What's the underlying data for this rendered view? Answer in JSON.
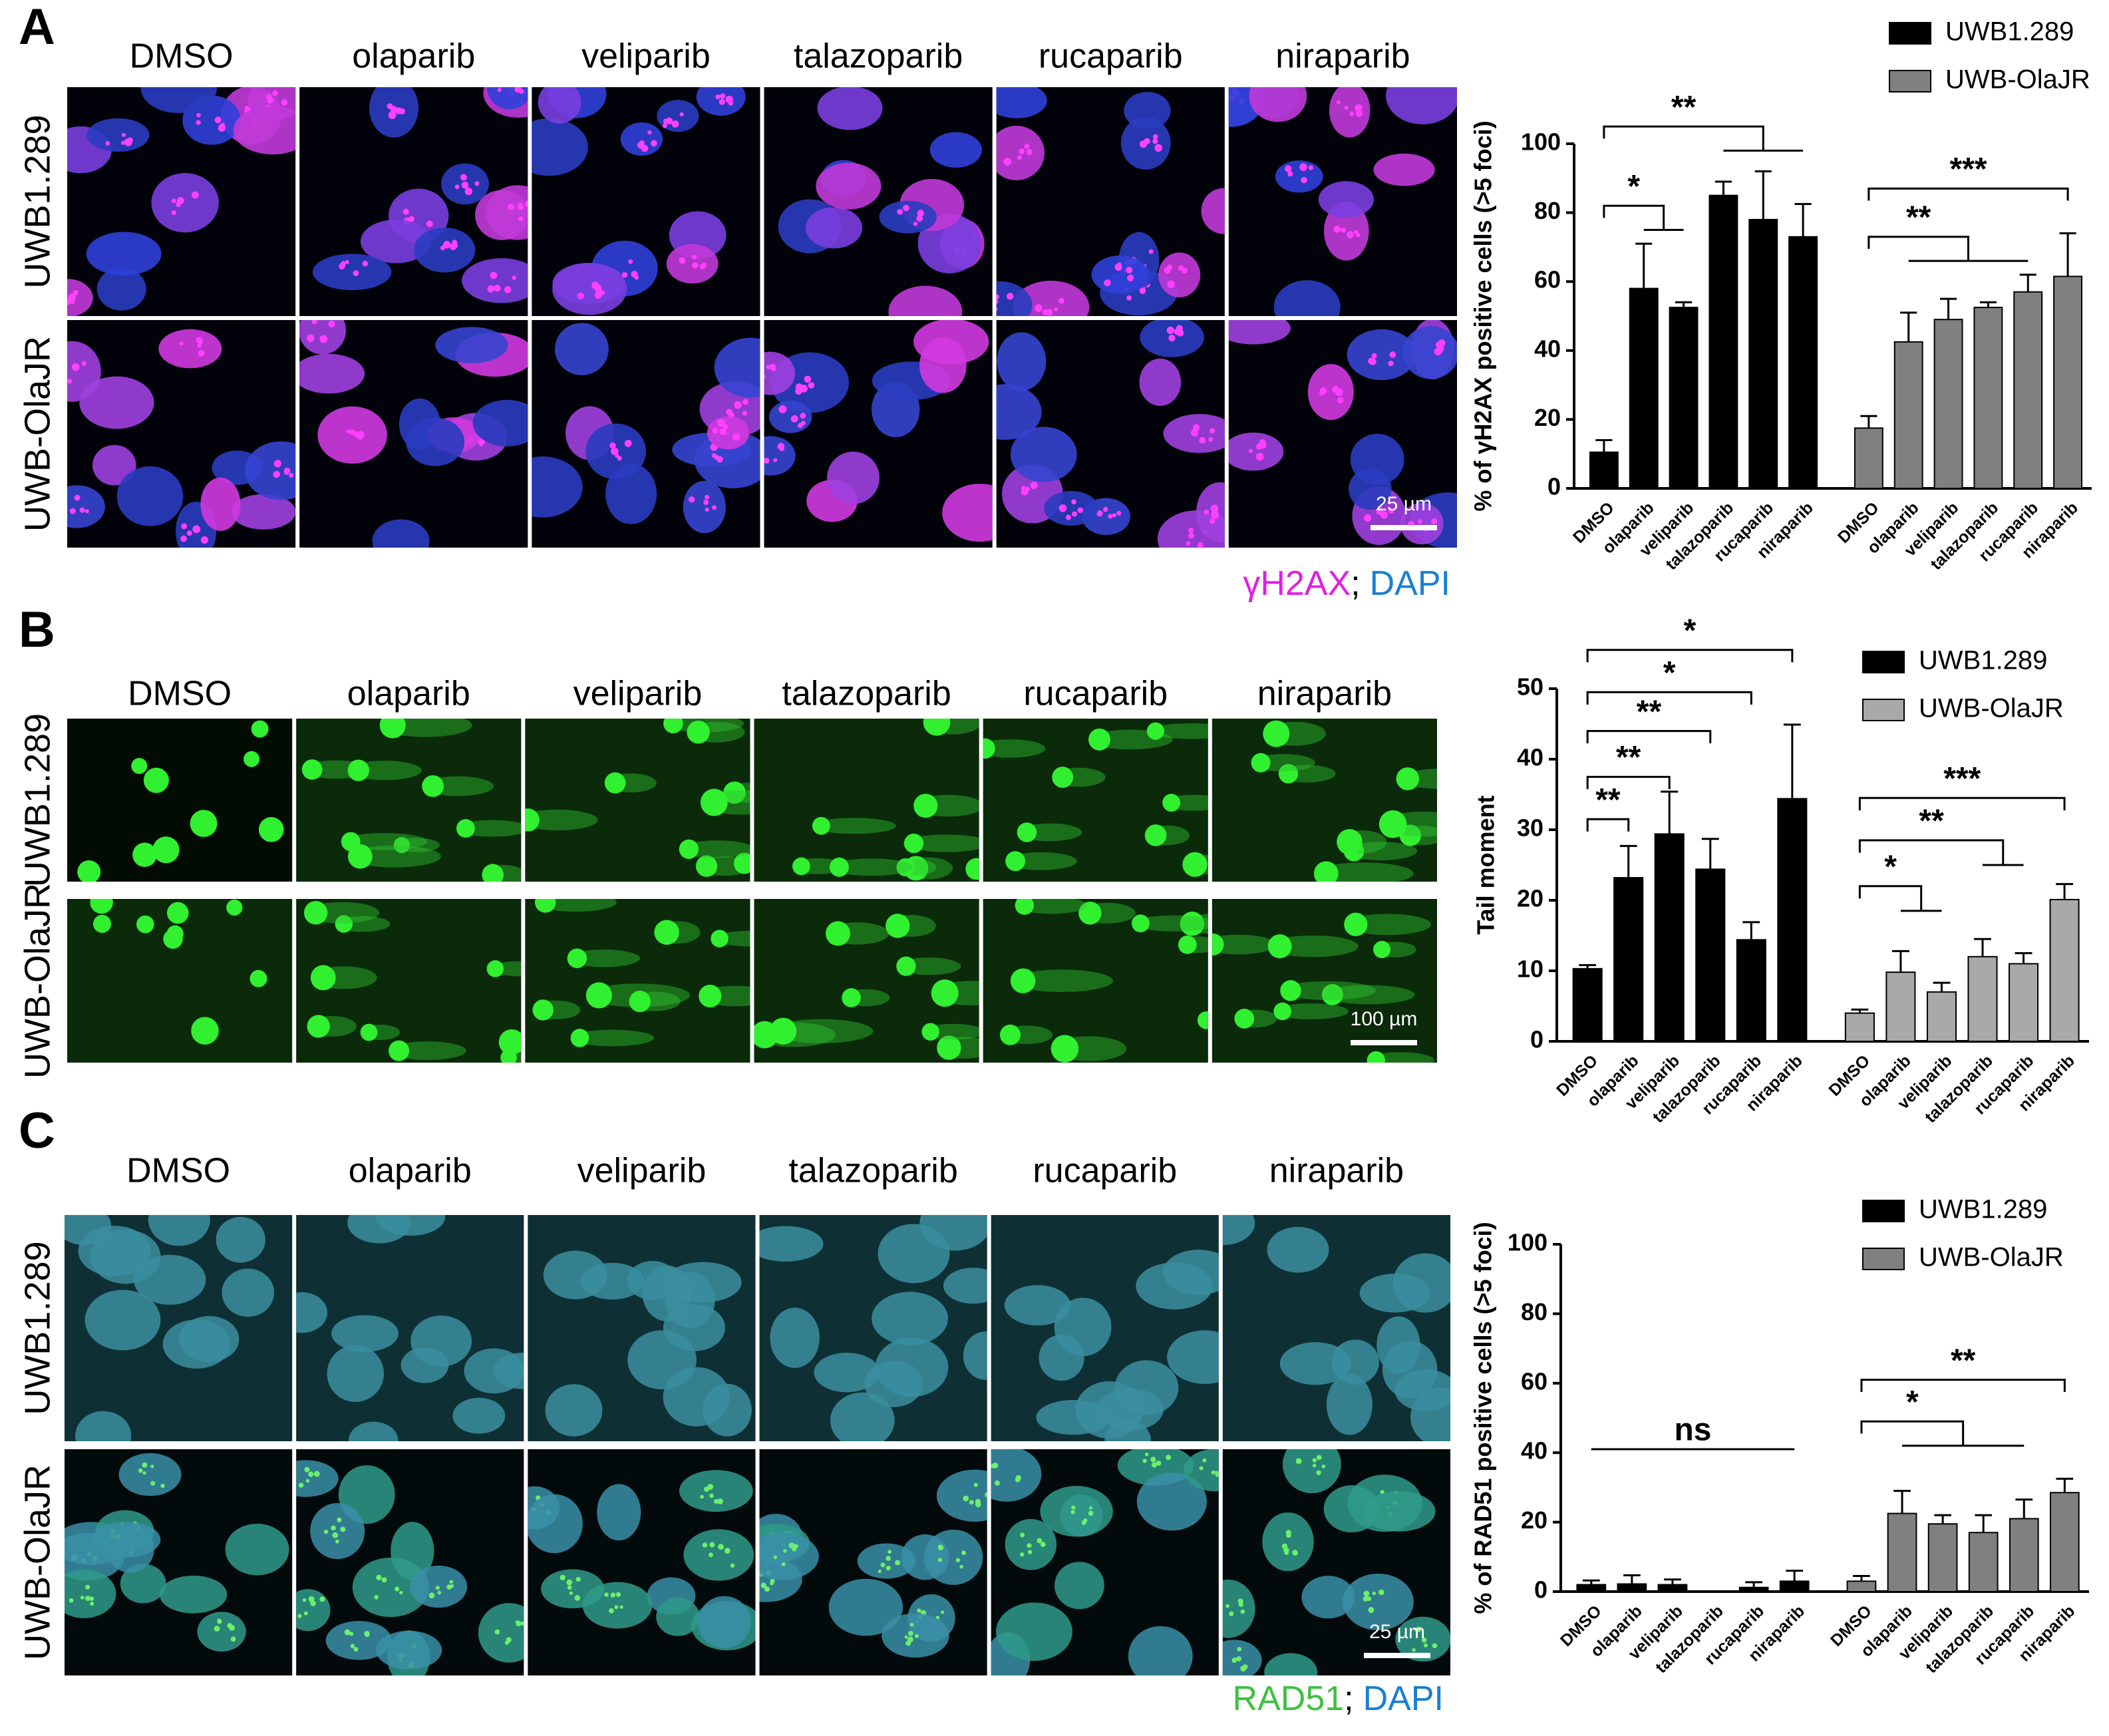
{
  "panels": [
    {
      "letter": "A",
      "columns": [
        "DMSO",
        "olaparib",
        "veliparib",
        "talazoparib",
        "rucaparib",
        "niraparib"
      ],
      "rows": [
        "UWB1.289",
        "UWB-OlaJR"
      ],
      "scale_bar": "25 µm",
      "stain": {
        "marker": "γH2AX",
        "separator": ";",
        "counterstain": "DAPI"
      }
    },
    {
      "letter": "B",
      "columns": [
        "DMSO",
        "olaparib",
        "veliparib",
        "talazoparib",
        "rucaparib",
        "niraparib"
      ],
      "rows": [
        "UWB1.289",
        "UWB-OlaJR"
      ],
      "scale_bar": "100 µm"
    },
    {
      "letter": "C",
      "columns": [
        "DMSO",
        "olaparib",
        "veliparib",
        "talazoparib",
        "rucaparib",
        "niraparib"
      ],
      "rows": [
        "UWB1.289",
        "UWB-OlaJR"
      ],
      "scale_bar": "25 µm",
      "stain": {
        "marker": "RAD51",
        "separator": ";",
        "counterstain": "DAPI"
      }
    }
  ],
  "chart_data": [
    {
      "type": "bar",
      "y_label": "% of γH2AX positive cells (>5 foci)",
      "categories": [
        "DMSO",
        "olaparib",
        "veliparib",
        "talazoparib",
        "rucaparib",
        "niraparib"
      ],
      "series": [
        {
          "name": "UWB1.289",
          "color": "#000000",
          "values": [
            10.5,
            58,
            52.5,
            85,
            78,
            73
          ],
          "errors": [
            3.5,
            13,
            1.5,
            4,
            14,
            9.5
          ]
        },
        {
          "name": "UWB-OlaJR",
          "color": "#808080",
          "values": [
            17.5,
            42.5,
            49,
            52.5,
            57,
            61.5
          ],
          "errors": [
            3.5,
            8.5,
            6,
            1.5,
            5,
            12.5
          ]
        }
      ],
      "ylim": [
        0,
        100
      ],
      "yticks": [
        0,
        20,
        40,
        60,
        80,
        100
      ],
      "legend": "upper right",
      "annotations": [
        "**",
        "*",
        "***",
        "**"
      ]
    },
    {
      "type": "bar",
      "y_label": "Tail moment",
      "categories": [
        "DMSO",
        "olaparib",
        "veliparib",
        "talazoparib",
        "rucaparib",
        "niraparib"
      ],
      "series": [
        {
          "name": "UWB1.289",
          "color": "#000000",
          "values": [
            10.3,
            23.2,
            29.4,
            24.4,
            14.4,
            34.4
          ],
          "errors": [
            0.5,
            4.5,
            6,
            4.3,
            2.5,
            10.5
          ]
        },
        {
          "name": "UWB-OlaJR",
          "color": "#a9a9a9",
          "values": [
            4,
            9.8,
            7,
            12,
            11,
            20.1
          ],
          "errors": [
            0.5,
            3,
            1.3,
            2.5,
            1.5,
            2.2
          ]
        }
      ],
      "ylim": [
        0,
        50
      ],
      "yticks": [
        0,
        10,
        20,
        30,
        40,
        50
      ],
      "legend": "upper right",
      "annotations": [
        "*",
        "*",
        "**",
        "**",
        "**",
        "***",
        "**",
        "*"
      ]
    },
    {
      "type": "bar",
      "y_label": "% of RAD51 positive cells (>5 foci)",
      "categories": [
        "DMSO",
        "olaparib",
        "veliparib",
        "talazoparib",
        "rucaparib",
        "niraparib"
      ],
      "series": [
        {
          "name": "UWB1.289",
          "color": "#000000",
          "values": [
            2,
            2.2,
            2,
            0,
            1.2,
            3
          ],
          "errors": [
            1.2,
            2.5,
            1.5,
            0,
            1.5,
            3
          ]
        },
        {
          "name": "UWB-OlaJR",
          "color": "#808080",
          "values": [
            3,
            22.5,
            19.5,
            17,
            21,
            28.5
          ],
          "errors": [
            1.5,
            6.5,
            2.5,
            5,
            5.5,
            4
          ]
        }
      ],
      "ylim": [
        0,
        100
      ],
      "yticks": [
        0,
        20,
        40,
        60,
        80,
        100
      ],
      "legend": "upper right",
      "annotations": [
        "ns",
        "**",
        "*"
      ]
    }
  ]
}
